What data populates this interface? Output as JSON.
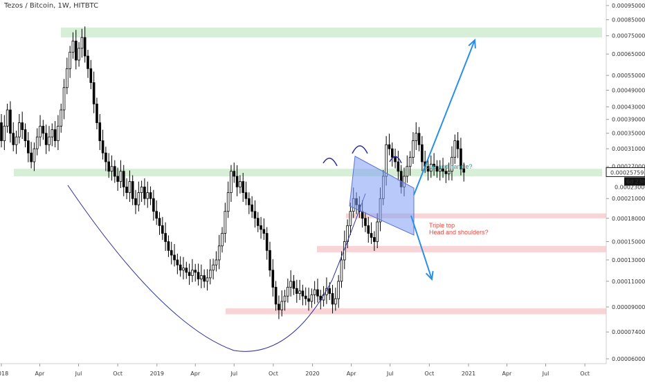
{
  "header": {
    "symbol_title": "Tezos / Bitcoin, 1W, HITBTC"
  },
  "colors": {
    "background": "#ffffff",
    "candle": "#000000",
    "support_zone": "#d6efd6",
    "resistance_zone": "#f9d4d6",
    "arrow": "#2a8ee6",
    "channel_fill": "#7f9ff5",
    "curve": "#2c2c9e",
    "cup_text": "#1e9e8f",
    "bear_text": "#e8483f",
    "price_label_bg": "#111111"
  },
  "price_label": {
    "value": "0.00025759",
    "countdown": "6d 23h",
    "hidden_tick": "0.00023000"
  },
  "annotations": {
    "cup_handle": "Cup and handle?",
    "triple_top": "Triple top",
    "head_shoulders": "Head and shoulders?"
  },
  "chart_data": {
    "type": "candlestick",
    "title": "Tezos / Bitcoin, 1W, HITBTC",
    "y_scale": "log",
    "y_ticks": [
      "0.00095000",
      "0.00085000",
      "0.00075000",
      "0.00065000",
      "0.00055000",
      "0.00049000",
      "0.00043000",
      "0.00039000",
      "0.00035000",
      "0.00031000",
      "0.00027000",
      "0.00021000",
      "0.00018000",
      "0.00015000",
      "0.00013000",
      "0.00011000",
      "0.00009000",
      "0.00007400",
      "0.00006000"
    ],
    "y_tick_values": [
      0.00095,
      0.00085,
      0.00075,
      0.00065,
      0.00055,
      0.00049,
      0.00043,
      0.00039,
      0.00035,
      0.00031,
      0.00027,
      0.00021,
      0.00018,
      0.00015,
      0.00013,
      0.00011,
      9e-05,
      7.4e-05,
      6e-05
    ],
    "x_ticks": [
      "2018",
      "Apr",
      "Jul",
      "Oct",
      "2019",
      "Apr",
      "Jul",
      "Oct",
      "2020",
      "Apr",
      "Jul",
      "Oct",
      "2021",
      "Apr",
      "Jul",
      "Oct"
    ],
    "x_tick_dates": [
      "2018-01-01",
      "2018-04-01",
      "2018-07-01",
      "2018-10-01",
      "2019-01-01",
      "2019-04-01",
      "2019-07-01",
      "2019-10-01",
      "2020-01-01",
      "2020-04-01",
      "2020-07-01",
      "2020-10-01",
      "2021-01-01",
      "2021-04-01",
      "2021-07-01",
      "2021-10-01"
    ],
    "candles_close": [
      0.00029,
      0.00036,
      0.00041,
      0.00038,
      0.00033,
      0.00037,
      0.00042,
      0.00035,
      0.00032,
      0.00034,
      0.00038,
      0.00036,
      0.00033,
      0.0003,
      0.00028,
      0.00031,
      0.00034,
      0.00037,
      0.00035,
      0.00032,
      0.00034,
      0.00036,
      0.00033,
      0.00037,
      0.00042,
      0.0005,
      0.00058,
      0.00066,
      0.00072,
      0.00062,
      0.00068,
      0.00074,
      0.00064,
      0.00058,
      0.00052,
      0.00044,
      0.00038,
      0.00033,
      0.0003,
      0.00028,
      0.00026,
      0.00027,
      0.00025,
      0.00024,
      0.00026,
      0.00023,
      0.00022,
      0.00024,
      0.00021,
      0.0002,
      0.00022,
      0.00023,
      0.00021,
      0.00022,
      0.00021,
      0.00019,
      0.00018,
      0.00017,
      0.00016,
      0.00015,
      0.00014,
      0.000135,
      0.00013,
      0.000125,
      0.00012,
      0.000122,
      0.000118,
      0.000115,
      0.00012,
      0.000118,
      0.000112,
      0.000115,
      0.00011,
      0.000113,
      0.00012,
      0.000125,
      0.00013,
      0.000145,
      0.00016,
      0.00019,
      0.00022,
      0.00026,
      0.00025,
      0.00023,
      0.00024,
      0.00022,
      0.00021,
      0.0002,
      0.00019,
      0.00018,
      0.00017,
      0.000165,
      0.00016,
      0.00014,
      0.00012,
      0.000105,
      9.2e-05,
      8.8e-05,
      9.4e-05,
      9.8e-05,
      0.000105,
      0.00011,
      0.000104,
      0.0001,
      0.000102,
      9.8e-05,
      9.6e-05,
      9.4e-05,
      9.9e-05,
      0.000103,
      9.8e-05,
      9.5e-05,
      9.9e-05,
      0.000104,
      0.0001,
      9.2e-05,
      9.6e-05,
      0.00011,
      0.00013,
      0.00015,
      0.00017,
      0.00019,
      0.00021,
      0.0002,
      0.00019,
      0.00018,
      0.00017,
      0.00016,
      0.000155,
      0.00015,
      0.000175,
      0.00021,
      0.00025,
      0.00032,
      0.00031,
      0.00029,
      0.00028,
      0.00026,
      0.00023,
      0.00025,
      0.00027,
      0.00029,
      0.00033,
      0.00035,
      0.00032,
      0.00028,
      0.00027,
      0.00026,
      0.000275,
      0.00027,
      0.00026,
      0.000265,
      0.00026,
      0.000255,
      0.00026,
      0.00029,
      0.00033,
      0.00031,
      0.000265,
      0.000258
    ],
    "x_start": "2017-12-04",
    "x_interval": "1 week",
    "y_range": [
      6e-05,
      0.00095
    ],
    "grid": false,
    "support_zones": [
      [
        0.00025,
        0.000265
      ],
      [
        0.00074,
        0.0008
      ]
    ],
    "resistance_zones": [
      [
        0.00018,
        0.000187
      ],
      [
        0.000138,
        0.000145
      ],
      [
        8.5e-05,
        8.9e-05
      ]
    ],
    "last_close": 0.00025759
  }
}
